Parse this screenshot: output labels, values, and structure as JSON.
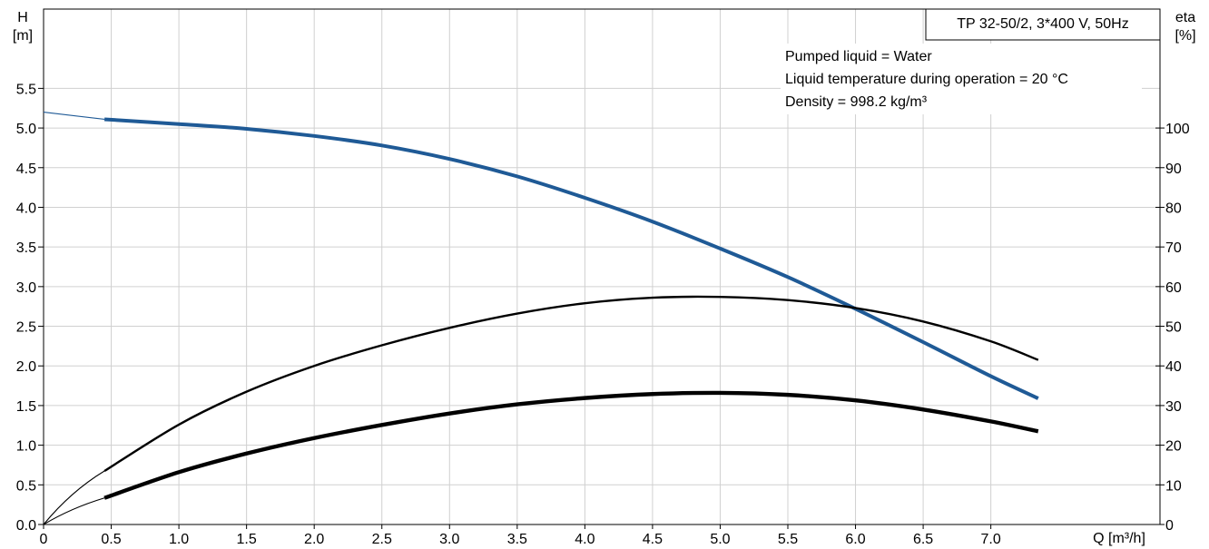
{
  "chart_data": {
    "type": "line",
    "title": "TP 32-50/2, 3*400 V, 50Hz",
    "info_lines": [
      "Pumped liquid = Water",
      "Liquid temperature during operation = 20 °C",
      "Density = 998.2 kg/m³"
    ],
    "x_axis": {
      "label": "Q [m³/h]",
      "range": [
        0,
        8.25
      ],
      "ticks": [
        0,
        0.5,
        1.0,
        1.5,
        2.0,
        2.5,
        3.0,
        3.5,
        4.0,
        4.5,
        5.0,
        5.5,
        6.0,
        6.5,
        7.0
      ],
      "tick_labels": [
        "0",
        "0.5",
        "1.0",
        "1.5",
        "2.0",
        "2.5",
        "3.0",
        "3.5",
        "4.0",
        "4.5",
        "5.0",
        "5.5",
        "6.0",
        "6.5",
        "7.0"
      ]
    },
    "y_left": {
      "label_line1": "H",
      "label_line2": "[m]",
      "range": [
        0,
        6.5
      ],
      "ticks": [
        0,
        0.5,
        1.0,
        1.5,
        2.0,
        2.5,
        3.0,
        3.5,
        4.0,
        4.5,
        5.0,
        5.5
      ],
      "tick_labels": [
        "0.0",
        "0.5",
        "1.0",
        "1.5",
        "2.0",
        "2.5",
        "3.0",
        "3.5",
        "4.0",
        "4.5",
        "5.0",
        "5.5"
      ]
    },
    "y_right": {
      "label_line1": "eta",
      "label_line2": "[%]",
      "range": [
        0,
        130
      ],
      "ticks": [
        0,
        10,
        20,
        30,
        40,
        50,
        60,
        70,
        80,
        90,
        100
      ],
      "tick_labels": [
        "0",
        "10",
        "20",
        "30",
        "40",
        "50",
        "60",
        "70",
        "80",
        "90",
        "100"
      ]
    },
    "grid": true,
    "series": [
      {
        "axis": "left",
        "color": "#1f5a96",
        "extrapolation": [
          [
            0,
            5.2
          ],
          [
            0.45,
            5.11
          ]
        ],
        "points": [
          [
            0.45,
            5.11
          ],
          [
            1.0,
            5.05
          ],
          [
            1.5,
            4.99
          ],
          [
            2.0,
            4.9
          ],
          [
            2.5,
            4.78
          ],
          [
            3.0,
            4.61
          ],
          [
            3.5,
            4.39
          ],
          [
            4.0,
            4.12
          ],
          [
            4.5,
            3.82
          ],
          [
            5.0,
            3.48
          ],
          [
            5.5,
            3.12
          ],
          [
            6.0,
            2.72
          ],
          [
            6.5,
            2.3
          ],
          [
            7.0,
            1.87
          ],
          [
            7.35,
            1.59
          ]
        ]
      },
      {
        "axis": "right",
        "color": "#000000",
        "extrapolation": [
          [
            0,
            0
          ],
          [
            0.45,
            13.5
          ]
        ],
        "points": [
          [
            0.45,
            13.5
          ],
          [
            1.0,
            25.2
          ],
          [
            1.5,
            33.5
          ],
          [
            2.0,
            40.0
          ],
          [
            2.5,
            45.2
          ],
          [
            3.0,
            49.6
          ],
          [
            3.5,
            53.2
          ],
          [
            4.0,
            55.8
          ],
          [
            4.5,
            57.2
          ],
          [
            5.0,
            57.4
          ],
          [
            5.5,
            56.6
          ],
          [
            6.0,
            54.6
          ],
          [
            6.5,
            51.2
          ],
          [
            7.0,
            46.2
          ],
          [
            7.35,
            41.5
          ]
        ]
      },
      {
        "axis": "right",
        "color": "#000000",
        "extrapolation": [
          [
            0,
            0
          ],
          [
            0.45,
            6.7
          ]
        ],
        "points": [
          [
            0.45,
            6.7
          ],
          [
            1.0,
            13.2
          ],
          [
            1.5,
            17.9
          ],
          [
            2.0,
            21.8
          ],
          [
            2.5,
            25.1
          ],
          [
            3.0,
            28.0
          ],
          [
            3.5,
            30.3
          ],
          [
            4.0,
            31.9
          ],
          [
            4.5,
            32.9
          ],
          [
            5.0,
            33.2
          ],
          [
            5.5,
            32.7
          ],
          [
            6.0,
            31.3
          ],
          [
            6.5,
            29.0
          ],
          [
            7.0,
            26.0
          ],
          [
            7.35,
            23.5
          ]
        ]
      }
    ]
  }
}
